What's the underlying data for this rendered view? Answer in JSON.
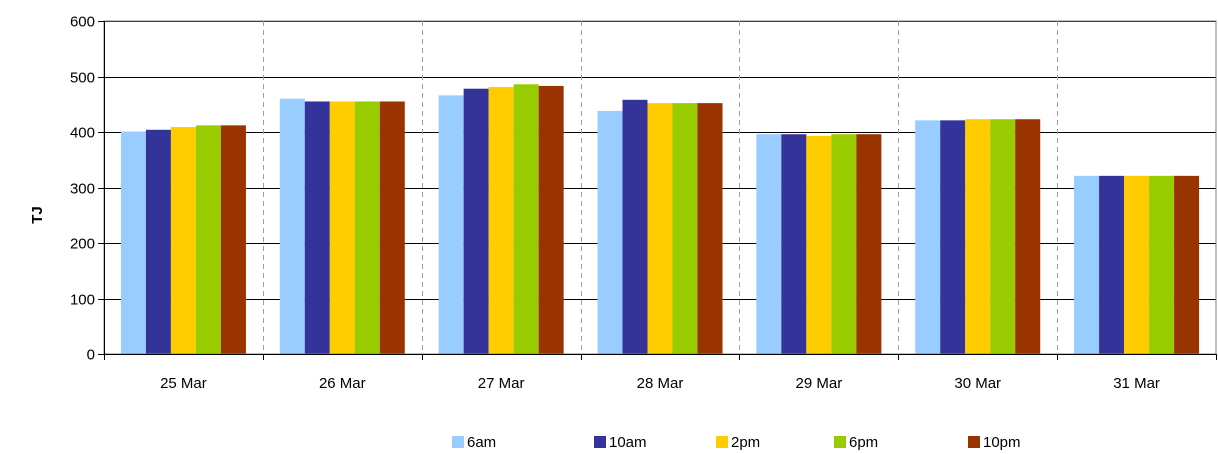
{
  "chart_data": {
    "type": "bar",
    "categories": [
      "25 Mar",
      "26 Mar",
      "27 Mar",
      "28 Mar",
      "29 Mar",
      "30 Mar",
      "31 Mar"
    ],
    "series": [
      {
        "name": "6am",
        "color": "#99ccff",
        "values": [
          401,
          460,
          466,
          438,
          396,
          421,
          321
        ]
      },
      {
        "name": "10am",
        "color": "#333399",
        "values": [
          404,
          455,
          478,
          458,
          396,
          421,
          321
        ]
      },
      {
        "name": "2pm",
        "color": "#ffcc00",
        "values": [
          409,
          455,
          481,
          452,
          393,
          423,
          321
        ]
      },
      {
        "name": "6pm",
        "color": "#99cc00",
        "values": [
          412,
          455,
          486,
          452,
          396,
          423,
          321
        ]
      },
      {
        "name": "10pm",
        "color": "#993300",
        "values": [
          412,
          455,
          483,
          452,
          396,
          423,
          321
        ]
      }
    ],
    "ylabel": "TJ",
    "ylim": [
      0,
      600
    ],
    "yticks": [
      0,
      100,
      200,
      300,
      400,
      500,
      600
    ],
    "legend": "bottom",
    "grid": {
      "horizontal": "solid",
      "vertical": "dashed"
    }
  }
}
